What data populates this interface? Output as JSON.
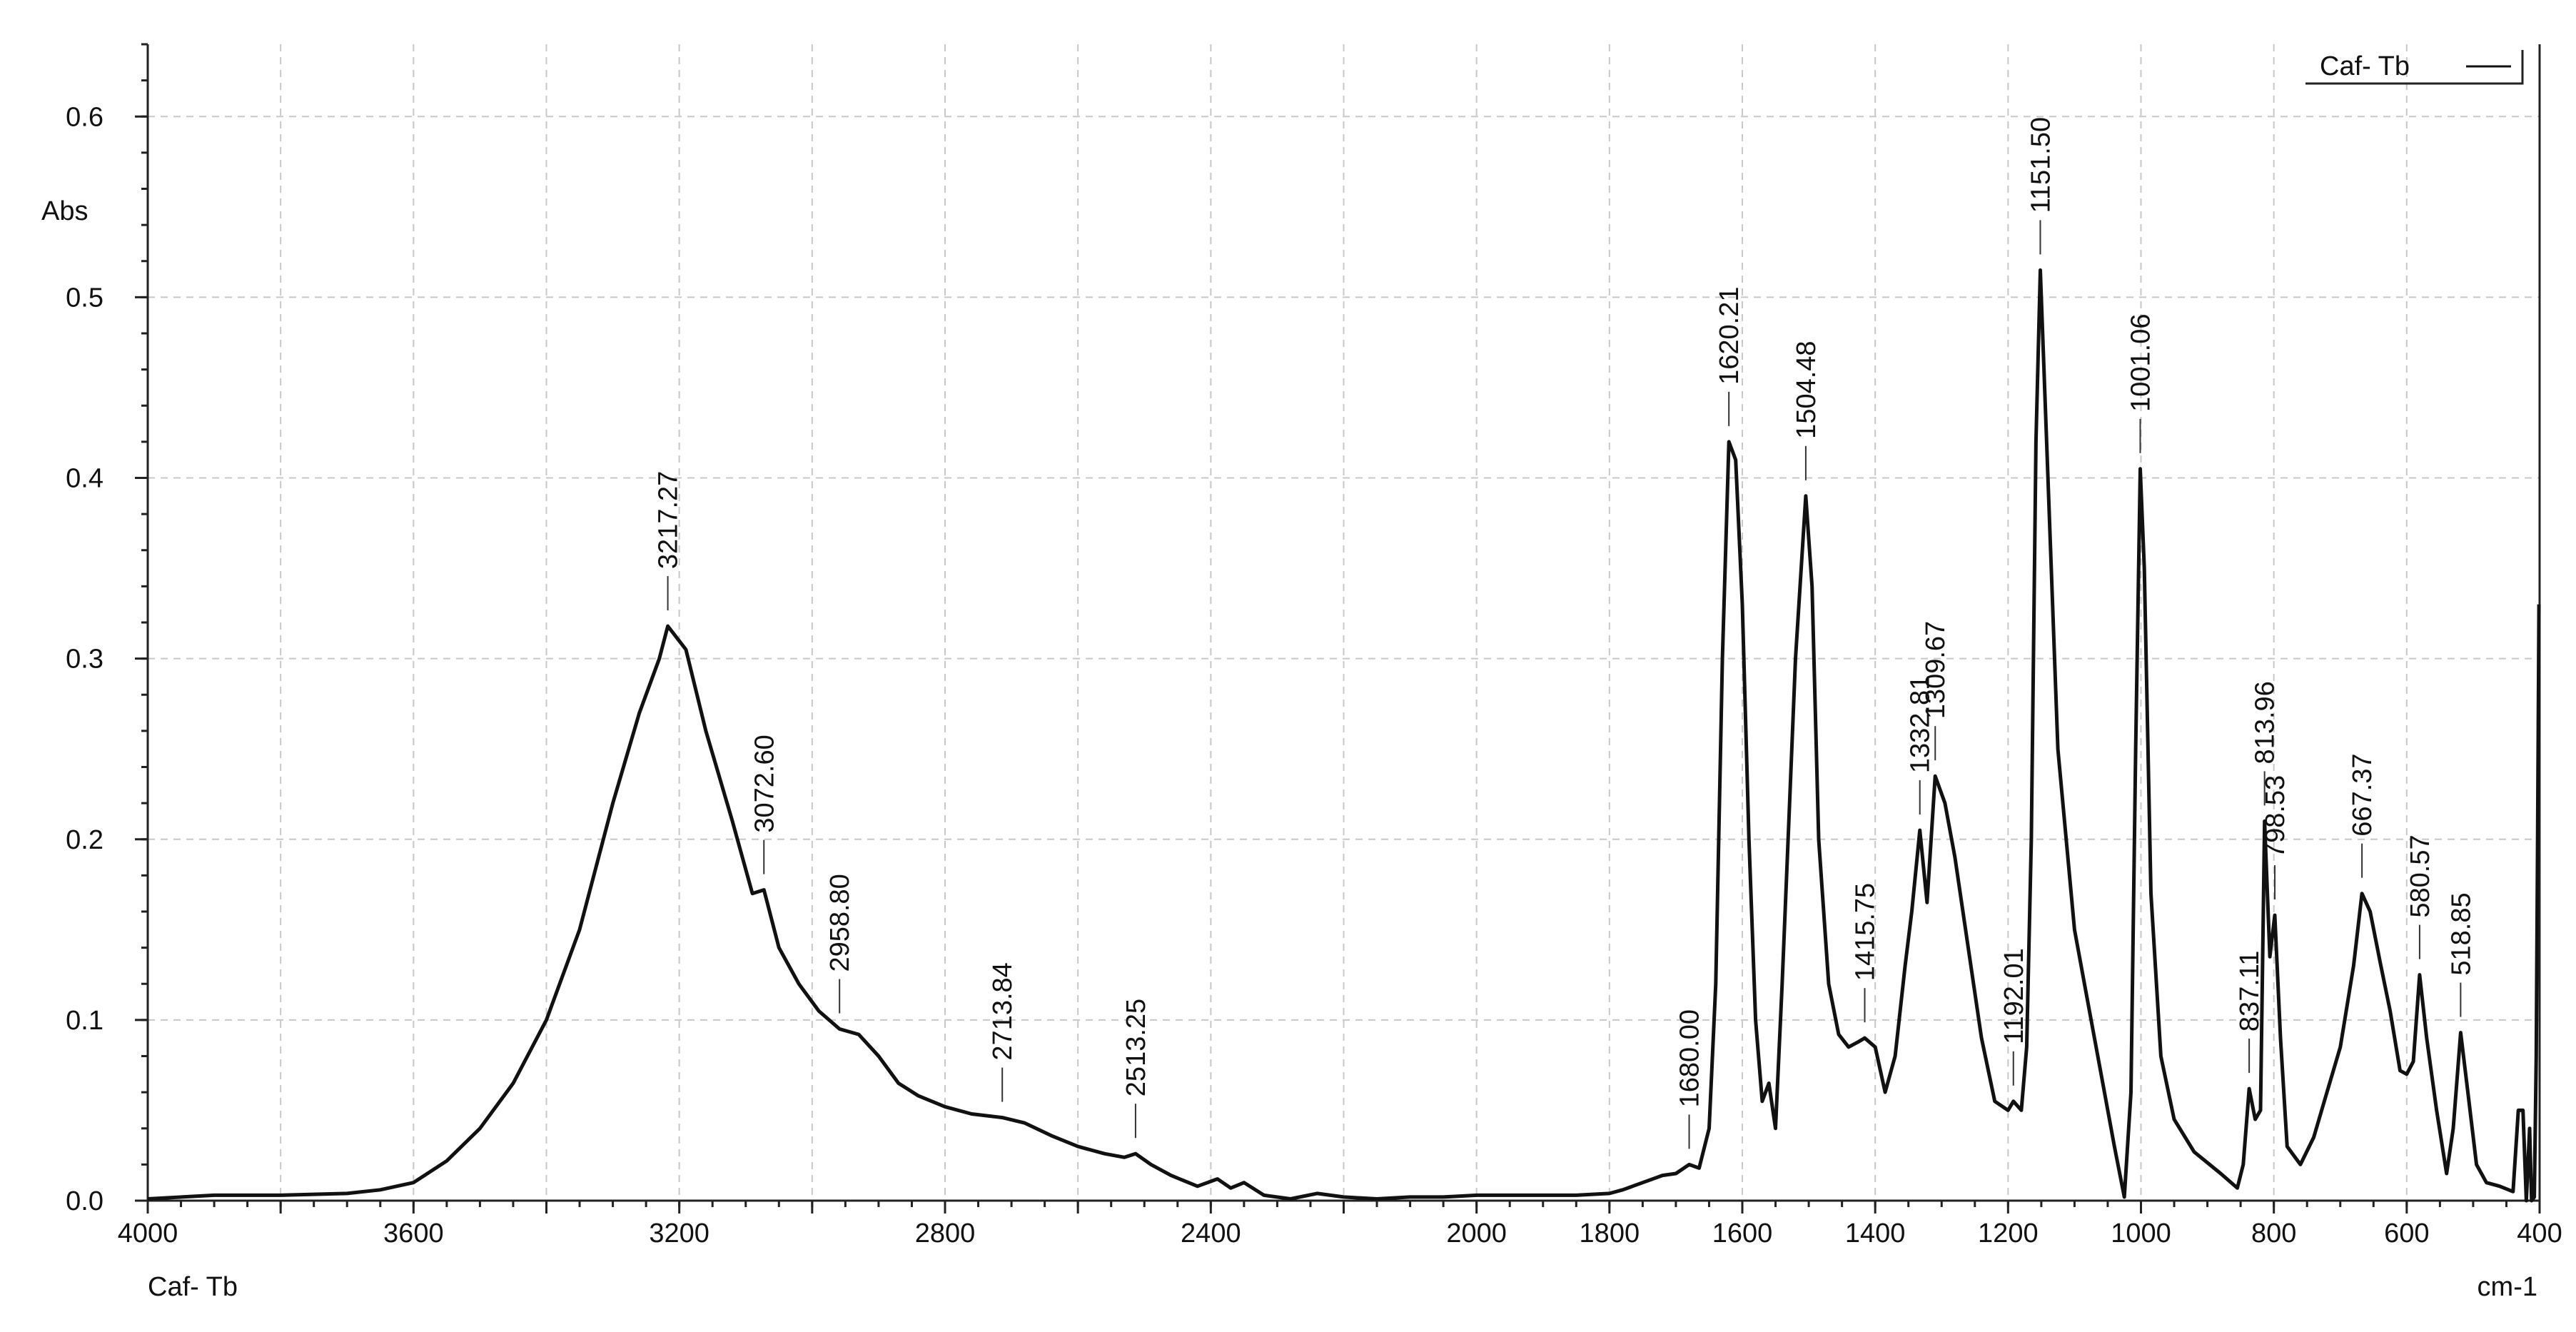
{
  "chart_data": {
    "type": "line",
    "title": "",
    "xlabel": "cm-1",
    "ylabel": "Abs",
    "sample_label": "Caf- Tb",
    "xlim": [
      4000,
      400
    ],
    "ylim": [
      0,
      0.64
    ],
    "x_reversed": true,
    "grid": true,
    "legend_position": "top-right",
    "x_ticks": [
      4000,
      3600,
      3200,
      2800,
      2400,
      2000,
      1600,
      1200,
      1000,
      800,
      600,
      400
    ],
    "x_tick_labels": [
      "4000",
      "3600",
      "3200",
      "2800",
      "2400",
      "2000",
      "1600",
      "1200",
      "1000",
      "800",
      "600",
      "400"
    ],
    "x_minor_ticks": [
      3800,
      3400,
      3000,
      2600,
      2200,
      1800,
      1400
    ],
    "x_minor_tick_labels": [
      "",
      "",
      "",
      "",
      "",
      "1800",
      "1400"
    ],
    "y_ticks": [
      0.0,
      0.1,
      0.2,
      0.3,
      0.4,
      0.5,
      0.6
    ],
    "y_tick_labels": [
      "0.0",
      "0.1",
      "0.2",
      "0.3",
      "0.4",
      "0.5",
      "0.6"
    ],
    "series": [
      {
        "name": "Caf- Tb",
        "color": "#111111",
        "x": [
          4000,
          3900,
          3800,
          3700,
          3650,
          3600,
          3550,
          3500,
          3450,
          3400,
          3350,
          3300,
          3260,
          3230,
          3217.27,
          3190,
          3160,
          3120,
          3090,
          3072.6,
          3050,
          3020,
          2990,
          2958.8,
          2930,
          2900,
          2870,
          2840,
          2800,
          2760,
          2713.84,
          2680,
          2640,
          2600,
          2560,
          2530,
          2513.25,
          2490,
          2460,
          2420,
          2390,
          2370,
          2350,
          2320,
          2280,
          2240,
          2200,
          2150,
          2100,
          2050,
          2000,
          1950,
          1900,
          1850,
          1800,
          1780,
          1750,
          1720,
          1700,
          1680,
          1665,
          1650,
          1640,
          1630,
          1620.21,
          1610,
          1600,
          1590,
          1580,
          1570,
          1560,
          1550,
          1540,
          1530,
          1520,
          1504.48,
          1495,
          1485,
          1470,
          1455,
          1440,
          1425,
          1415.75,
          1400,
          1385,
          1370,
          1355,
          1345,
          1332.81,
          1322,
          1309.67,
          1295,
          1280,
          1260,
          1240,
          1220,
          1200,
          1192.01,
          1180,
          1172,
          1165,
          1158,
          1151.5,
          1140,
          1125,
          1100,
          1080,
          1060,
          1040,
          1025,
          1015,
          1008,
          1001.06,
          995,
          985,
          970,
          950,
          920,
          880,
          855,
          846,
          837.11,
          828,
          820,
          813.96,
          806,
          798.53,
          790,
          780,
          760,
          740,
          720,
          700,
          680,
          667.37,
          655,
          640,
          625,
          610,
          600,
          590,
          580.57,
          570,
          555,
          540,
          530,
          518.85,
          508,
          495,
          480,
          460,
          440,
          432,
          425,
          420,
          415,
          412,
          408,
          405,
          403,
          401
        ],
        "y": [
          0.001,
          0.003,
          0.003,
          0.004,
          0.006,
          0.01,
          0.022,
          0.04,
          0.065,
          0.1,
          0.15,
          0.22,
          0.27,
          0.3,
          0.318,
          0.305,
          0.26,
          0.21,
          0.17,
          0.172,
          0.14,
          0.12,
          0.105,
          0.095,
          0.092,
          0.08,
          0.065,
          0.058,
          0.052,
          0.048,
          0.046,
          0.043,
          0.036,
          0.03,
          0.026,
          0.024,
          0.026,
          0.02,
          0.014,
          0.008,
          0.012,
          0.007,
          0.01,
          0.003,
          0.001,
          0.004,
          0.002,
          0.001,
          0.002,
          0.002,
          0.003,
          0.003,
          0.003,
          0.003,
          0.004,
          0.006,
          0.01,
          0.014,
          0.015,
          0.02,
          0.018,
          0.04,
          0.12,
          0.3,
          0.42,
          0.41,
          0.33,
          0.2,
          0.1,
          0.055,
          0.065,
          0.04,
          0.12,
          0.21,
          0.3,
          0.39,
          0.34,
          0.2,
          0.12,
          0.092,
          0.085,
          0.088,
          0.09,
          0.085,
          0.06,
          0.08,
          0.13,
          0.16,
          0.205,
          0.165,
          0.235,
          0.22,
          0.19,
          0.14,
          0.09,
          0.055,
          0.05,
          0.055,
          0.05,
          0.085,
          0.2,
          0.42,
          0.515,
          0.4,
          0.25,
          0.15,
          0.11,
          0.07,
          0.03,
          0.002,
          0.06,
          0.25,
          0.405,
          0.35,
          0.17,
          0.08,
          0.045,
          0.027,
          0.015,
          0.007,
          0.02,
          0.062,
          0.045,
          0.05,
          0.21,
          0.135,
          0.158,
          0.09,
          0.03,
          0.02,
          0.035,
          0.06,
          0.085,
          0.13,
          0.17,
          0.16,
          0.132,
          0.105,
          0.072,
          0.07,
          0.077,
          0.125,
          0.09,
          0.05,
          0.015,
          0.04,
          0.093,
          0.06,
          0.02,
          0.01,
          0.008,
          0.005,
          0.05,
          0.05,
          0.0,
          0.04,
          0.0,
          0.002,
          0.08,
          0.2,
          0.33
        ]
      }
    ],
    "annotations": [
      {
        "x": 3217.27,
        "y": 0.318,
        "label": "3217.27"
      },
      {
        "x": 3072.6,
        "y": 0.172,
        "label": "3072.60"
      },
      {
        "x": 2958.8,
        "y": 0.095,
        "label": "2958.80"
      },
      {
        "x": 2713.84,
        "y": 0.046,
        "label": "2713.84"
      },
      {
        "x": 2513.25,
        "y": 0.026,
        "label": "2513.25"
      },
      {
        "x": 1680.0,
        "y": 0.02,
        "label": "1680.00"
      },
      {
        "x": 1620.21,
        "y": 0.42,
        "label": "1620.21"
      },
      {
        "x": 1504.48,
        "y": 0.39,
        "label": "1504.48"
      },
      {
        "x": 1415.75,
        "y": 0.09,
        "label": "1415.75"
      },
      {
        "x": 1332.81,
        "y": 0.205,
        "label": "1332.81"
      },
      {
        "x": 1309.67,
        "y": 0.235,
        "label": "1309.67"
      },
      {
        "x": 1192.01,
        "y": 0.055,
        "label": "1192.01"
      },
      {
        "x": 1151.5,
        "y": 0.515,
        "label": "1151.50"
      },
      {
        "x": 1001.06,
        "y": 0.405,
        "label": "1001.06"
      },
      {
        "x": 837.11,
        "y": 0.062,
        "label": "837.11"
      },
      {
        "x": 813.96,
        "y": 0.21,
        "label": "813.96"
      },
      {
        "x": 798.53,
        "y": 0.158,
        "label": "798.53"
      },
      {
        "x": 667.37,
        "y": 0.17,
        "label": "667.37"
      },
      {
        "x": 580.57,
        "y": 0.125,
        "label": "580.57"
      },
      {
        "x": 518.85,
        "y": 0.093,
        "label": "518.85"
      }
    ]
  }
}
